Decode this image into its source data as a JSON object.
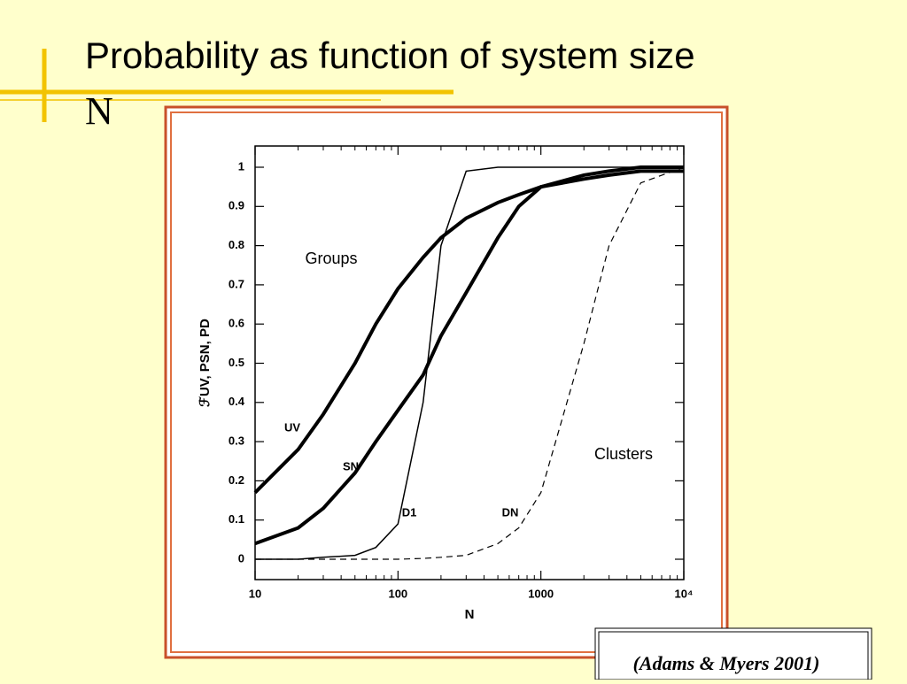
{
  "slide": {
    "title": "Probability as function of system size",
    "title_symbol": "N",
    "citation": "(Adams & Myers 2001)"
  },
  "chart_data": {
    "type": "line",
    "x_label": "N",
    "y_label": "ℱUV, PSN, PD",
    "log_x": true,
    "xlim": [
      10,
      10000
    ],
    "xticks": [
      10,
      100,
      1000,
      {
        "value": 10000,
        "label": "10⁴"
      }
    ],
    "ylim": [
      0,
      1
    ],
    "yticks": [
      0,
      0.1,
      0.2,
      0.3,
      0.4,
      0.5,
      0.6,
      0.7,
      0.8,
      0.9,
      1
    ],
    "x": [
      10,
      20,
      30,
      50,
      70,
      100,
      150,
      200,
      300,
      500,
      700,
      1000,
      2000,
      3000,
      5000,
      10000
    ],
    "series": [
      {
        "name": "UV",
        "color": "#000000",
        "line_width": 4,
        "dash": false,
        "values": [
          0.17,
          0.28,
          0.37,
          0.5,
          0.6,
          0.69,
          0.77,
          0.82,
          0.87,
          0.91,
          0.93,
          0.95,
          0.97,
          0.98,
          0.99,
          0.99
        ]
      },
      {
        "name": "SN",
        "color": "#000000",
        "line_width": 4,
        "dash": false,
        "values": [
          0.04,
          0.08,
          0.13,
          0.22,
          0.3,
          0.38,
          0.47,
          0.57,
          0.68,
          0.82,
          0.9,
          0.95,
          0.98,
          0.99,
          1,
          1
        ]
      },
      {
        "name": "D1",
        "color": "#000000",
        "line_width": 1.5,
        "dash": false,
        "values": [
          0,
          0,
          0.005,
          0.01,
          0.03,
          0.09,
          0.4,
          0.8,
          0.99,
          1,
          1,
          1,
          1,
          1,
          1,
          1
        ]
      },
      {
        "name": "DN",
        "color": "#000000",
        "line_width": 1.2,
        "dash": true,
        "values": [
          0,
          0,
          0,
          0,
          0,
          0,
          0.002,
          0.005,
          0.01,
          0.04,
          0.08,
          0.17,
          0.55,
          0.8,
          0.96,
          1
        ]
      }
    ],
    "annotations": [
      "Groups",
      "Clusters"
    ]
  }
}
